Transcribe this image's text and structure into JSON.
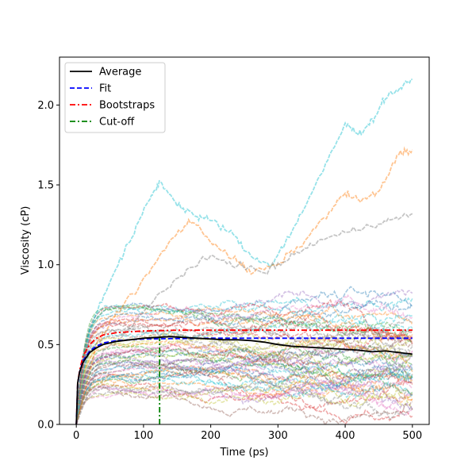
{
  "chart_data": {
    "type": "line",
    "title": "",
    "xlabel": "Time (ps)",
    "ylabel": "Viscosity (cP)",
    "xlim": [
      -25,
      525
    ],
    "ylim": [
      0,
      2.3
    ],
    "xticks": [
      0,
      100,
      200,
      300,
      400,
      500
    ],
    "yticks": [
      0.0,
      0.5,
      1.0,
      1.5,
      2.0
    ],
    "legend_position": "top-left",
    "grid": false,
    "series": [
      {
        "name": "Average",
        "color": "#000000",
        "style": "solid",
        "x": [
          0,
          2,
          5,
          10,
          20,
          30,
          40,
          60,
          80,
          100,
          120,
          140,
          160,
          180,
          200,
          220,
          240,
          260,
          280,
          300,
          320,
          340,
          360,
          380,
          400,
          420,
          440,
          460,
          480,
          500
        ],
        "y": [
          0,
          0.26,
          0.33,
          0.39,
          0.45,
          0.48,
          0.5,
          0.52,
          0.53,
          0.54,
          0.545,
          0.55,
          0.545,
          0.54,
          0.535,
          0.53,
          0.53,
          0.525,
          0.515,
          0.5,
          0.49,
          0.485,
          0.48,
          0.475,
          0.47,
          0.465,
          0.455,
          0.46,
          0.45,
          0.44
        ]
      },
      {
        "name": "Fit",
        "color": "#0000ff",
        "style": "dashed",
        "x": [
          0,
          2,
          5,
          10,
          20,
          30,
          40,
          60,
          80,
          100,
          150,
          200,
          300,
          400,
          500
        ],
        "y": [
          0,
          0.25,
          0.33,
          0.4,
          0.46,
          0.49,
          0.51,
          0.525,
          0.53,
          0.535,
          0.538,
          0.54,
          0.54,
          0.54,
          0.54
        ]
      },
      {
        "name": "Bootstraps",
        "color": "#ff0000",
        "style": "dashdot",
        "x": [
          0,
          2,
          5,
          10,
          20,
          30,
          40,
          60,
          80,
          100,
          150,
          200,
          300,
          400,
          500
        ],
        "y": [
          0,
          0.26,
          0.34,
          0.43,
          0.5,
          0.54,
          0.56,
          0.575,
          0.58,
          0.585,
          0.59,
          0.59,
          0.59,
          0.59,
          0.59
        ]
      },
      {
        "name": "Cut-off",
        "color": "#008000",
        "style": "dashdot",
        "x": [
          124,
          124
        ],
        "y": [
          0,
          0.54
        ]
      }
    ],
    "trajectories": {
      "count": 60,
      "colors": [
        "#1f77b4",
        "#ff7f0e",
        "#2ca02c",
        "#d62728",
        "#9467bd",
        "#8c564b",
        "#e377c2",
        "#7f7f7f",
        "#bcbd22",
        "#17becf"
      ],
      "opacity": 0.4,
      "highlighted": [
        {
          "color": "#17becf",
          "x": [
            0,
            20,
            50,
            80,
            110,
            125,
            150,
            180,
            200,
            230,
            260,
            290,
            320,
            350,
            380,
            400,
            420,
            440,
            460,
            480,
            500
          ],
          "y": [
            0,
            0.6,
            0.9,
            1.15,
            1.42,
            1.52,
            1.38,
            1.3,
            1.28,
            1.2,
            1.05,
            1.0,
            1.2,
            1.45,
            1.7,
            1.88,
            1.82,
            1.9,
            2.05,
            2.1,
            2.16
          ]
        },
        {
          "color": "#ff7f0e",
          "x": [
            0,
            30,
            60,
            100,
            140,
            170,
            200,
            230,
            260,
            300,
            340,
            380,
            400,
            420,
            450,
            480,
            500
          ],
          "y": [
            0,
            0.5,
            0.7,
            0.9,
            1.15,
            1.28,
            1.15,
            1.05,
            0.95,
            1.0,
            1.15,
            1.35,
            1.45,
            1.4,
            1.45,
            1.7,
            1.72
          ]
        },
        {
          "color": "#7f7f7f",
          "x": [
            0,
            40,
            80,
            120,
            160,
            200,
            240,
            280,
            320,
            360,
            400,
            440,
            470,
            500
          ],
          "y": [
            0,
            0.45,
            0.6,
            0.8,
            0.95,
            1.05,
            1.0,
            0.95,
            1.05,
            1.15,
            1.2,
            1.25,
            1.28,
            1.32
          ]
        }
      ]
    }
  }
}
